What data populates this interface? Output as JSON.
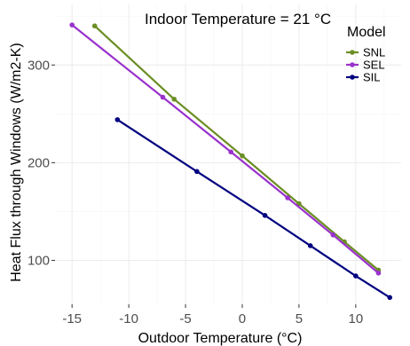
{
  "chart_data": {
    "type": "line",
    "title": "",
    "annotation": "Indoor Temperature = 21 °C",
    "xlabel": "Outdoor Temperature (°C)",
    "ylabel": "Heat Flux through Windows (W/m2-K)",
    "xlim": [
      -16.5,
      14
    ],
    "ylim": [
      55,
      362
    ],
    "x_ticks": [
      -15,
      -10,
      -5,
      0,
      5,
      10
    ],
    "y_ticks": [
      100,
      200,
      300
    ],
    "grid": true,
    "legend": {
      "title": "Model",
      "position": "top-right"
    },
    "series": [
      {
        "name": "SNL",
        "color": "#6b8e23",
        "points": [
          {
            "x": -13,
            "y": 340
          },
          {
            "x": -6,
            "y": 265
          },
          {
            "x": 0,
            "y": 207
          },
          {
            "x": 5,
            "y": 158
          },
          {
            "x": 9,
            "y": 119
          },
          {
            "x": 12,
            "y": 90
          }
        ]
      },
      {
        "name": "SEL",
        "color": "#9932cc",
        "points": [
          {
            "x": -15,
            "y": 341
          },
          {
            "x": -7,
            "y": 267
          },
          {
            "x": -1,
            "y": 211
          },
          {
            "x": 4,
            "y": 164
          },
          {
            "x": 8,
            "y": 126
          },
          {
            "x": 12,
            "y": 87
          }
        ]
      },
      {
        "name": "SIL",
        "color": "#000080",
        "points": [
          {
            "x": -11,
            "y": 244
          },
          {
            "x": -4,
            "y": 191
          },
          {
            "x": 2,
            "y": 146
          },
          {
            "x": 6,
            "y": 115
          },
          {
            "x": 10,
            "y": 84
          },
          {
            "x": 13,
            "y": 62
          }
        ]
      }
    ]
  }
}
